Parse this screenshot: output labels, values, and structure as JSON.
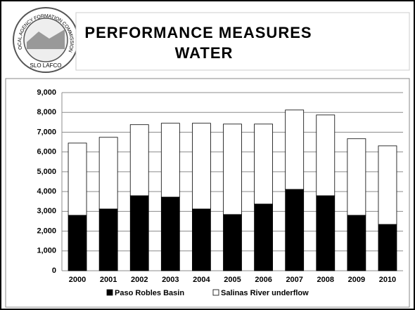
{
  "header": {
    "title": [
      "PERFORMANCE MEASURES",
      "WATER"
    ],
    "logo": {
      "ring": "LOCAL AGENCY FORMATION COMMISSION",
      "banner": "SLO LAFCO"
    }
  },
  "chart_data": {
    "type": "stacked_bar",
    "categories": [
      "2000",
      "2001",
      "2002",
      "2003",
      "2004",
      "2005",
      "2006",
      "2007",
      "2008",
      "2009",
      "2010"
    ],
    "series": [
      {
        "name": "Paso Robles Basin",
        "color": "#000000",
        "values": [
          2800,
          3120,
          3790,
          3720,
          3120,
          2840,
          3370,
          4110,
          3790,
          2800,
          2340
        ]
      },
      {
        "name": "Salinas River underflow",
        "color": "#ffffff",
        "values": [
          3650,
          3620,
          3590,
          3730,
          4330,
          4570,
          4040,
          4010,
          4080,
          3870,
          3970
        ]
      }
    ],
    "ylim": [
      0,
      9000
    ],
    "yticks": [
      0,
      {
        "value": 1000,
        "label": "1,000"
      },
      {
        "value": 2000,
        "label": "2,000"
      },
      {
        "value": 3000,
        "label": "3,000"
      },
      {
        "value": 4000,
        "label": "4,000"
      },
      {
        "value": 5000,
        "label": "5,000"
      },
      {
        "value": 6000,
        "label": "6,000"
      },
      {
        "value": 7000,
        "label": "7,000"
      },
      {
        "value": 8000,
        "label": "8,000"
      },
      {
        "value": 9000,
        "label": "9,000"
      }
    ],
    "grid": true,
    "legend": "bottom"
  }
}
